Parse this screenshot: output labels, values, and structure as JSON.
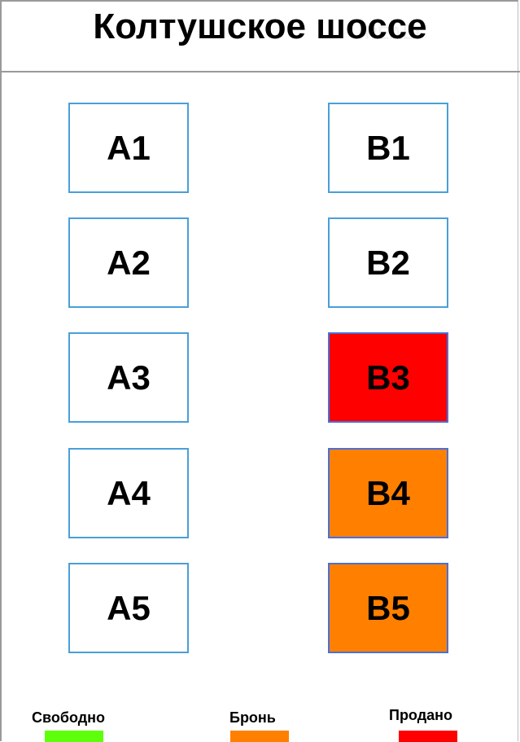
{
  "title": "Колтушское шоссе",
  "watermark": "REALT",
  "columns": [
    {
      "units": [
        {
          "label": "A1",
          "status": "free"
        },
        {
          "label": "A2",
          "status": "free"
        },
        {
          "label": "A3",
          "status": "free"
        },
        {
          "label": "A4",
          "status": "free"
        },
        {
          "label": "A5",
          "status": "free"
        }
      ]
    },
    {
      "units": [
        {
          "label": "B1",
          "status": "free"
        },
        {
          "label": "B2",
          "status": "free"
        },
        {
          "label": "B3",
          "status": "sold"
        },
        {
          "label": "B4",
          "status": "reserved"
        },
        {
          "label": "B5",
          "status": "reserved"
        }
      ]
    }
  ],
  "legend": [
    {
      "key": "free",
      "label": "Свободно",
      "color": "#5eff0a"
    },
    {
      "key": "reserved",
      "label": "Бронь",
      "color": "#ff8000"
    },
    {
      "key": "sold",
      "label": "Продано",
      "color": "#ff0000"
    }
  ],
  "colors": {
    "box_border": "#4a9fd8",
    "free_fill": "#ffffff"
  }
}
